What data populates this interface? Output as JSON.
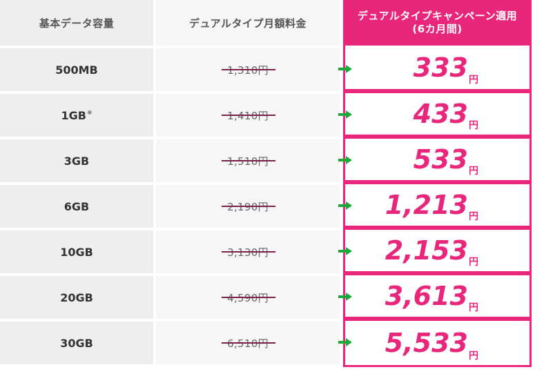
{
  "header": {
    "col_capacity": "基本データ容量",
    "col_regular": "デュアルタイプ月額料金",
    "col_campaign_line1": "デュアルタイプキャンペーン適用",
    "col_campaign_line2": "(6カ月間)"
  },
  "rows": [
    {
      "capacity": "500MB",
      "note": "",
      "regular_price": "1,310円",
      "campaign_price": "333",
      "yen": "円"
    },
    {
      "capacity": "1GB",
      "note": "※",
      "regular_price": "1,410円",
      "campaign_price": "433",
      "yen": "円"
    },
    {
      "capacity": "3GB",
      "note": "",
      "regular_price": "1,510円",
      "campaign_price": "533",
      "yen": "円"
    },
    {
      "capacity": "6GB",
      "note": "",
      "regular_price": "2,190円",
      "campaign_price": "1,213",
      "yen": "円"
    },
    {
      "capacity": "10GB",
      "note": "",
      "regular_price": "3,130円",
      "campaign_price": "2,153",
      "yen": "円"
    },
    {
      "capacity": "20GB",
      "note": "",
      "regular_price": "4,590円",
      "campaign_price": "3,613",
      "yen": "円"
    },
    {
      "capacity": "30GB",
      "note": "",
      "regular_price": "6,510円",
      "campaign_price": "5,533",
      "yen": "円"
    }
  ],
  "colors": {
    "accent": "#e8267b",
    "arrow": "#1aa83c",
    "header_bg": "#eeeeee",
    "cell_bg": "#f6f6f6"
  },
  "icons": {
    "row_arrow": "arrow-right-icon"
  }
}
